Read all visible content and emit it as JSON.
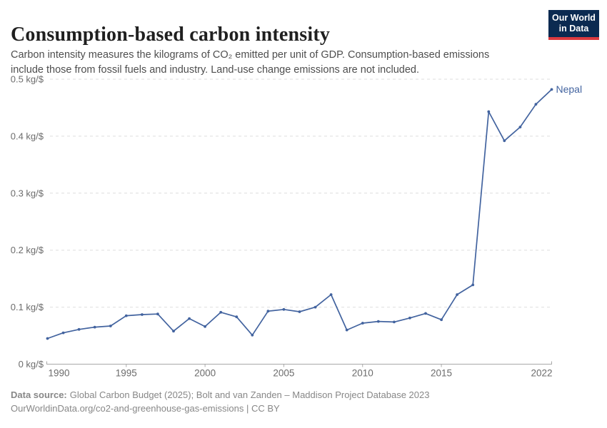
{
  "header": {
    "title": "Consumption-based carbon intensity",
    "subtitle": "Carbon intensity measures the kilograms of CO₂ emitted per unit of GDP. Consumption-based emissions include those from fossil fuels and industry. Land-use change emissions are not included."
  },
  "logo": {
    "line1": "Our World",
    "line2": "in Data",
    "bg_color": "#0b2a51",
    "bar_color": "#dc3a3f"
  },
  "chart_data": {
    "type": "line",
    "title": "Consumption-based carbon intensity",
    "entity_label": "Nepal",
    "unit": "kg/$",
    "x": [
      1990,
      1991,
      1992,
      1993,
      1994,
      1995,
      1996,
      1997,
      1998,
      1999,
      2000,
      2001,
      2002,
      2003,
      2004,
      2005,
      2006,
      2007,
      2008,
      2009,
      2010,
      2011,
      2012,
      2013,
      2014,
      2015,
      2016,
      2017,
      2018,
      2019,
      2020,
      2021,
      2022
    ],
    "series": [
      {
        "name": "Nepal",
        "color": "#42639f",
        "values": [
          0.045,
          0.055,
          0.061,
          0.065,
          0.067,
          0.085,
          0.087,
          0.088,
          0.058,
          0.08,
          0.066,
          0.091,
          0.083,
          0.051,
          0.093,
          0.096,
          0.092,
          0.1,
          0.122,
          0.06,
          0.072,
          0.075,
          0.074,
          0.081,
          0.089,
          0.078,
          0.122,
          0.139,
          0.443,
          0.392,
          0.416,
          0.456,
          0.482
        ]
      }
    ],
    "ylim": [
      0,
      0.5
    ],
    "yticks": [
      0,
      0.1,
      0.2,
      0.3,
      0.4,
      0.5
    ],
    "ytick_labels": [
      "0 kg/$",
      "0.1 kg/$",
      "0.2 kg/$",
      "0.3 kg/$",
      "0.4 kg/$",
      "0.5 kg/$"
    ],
    "xticks": [
      1990,
      1995,
      2000,
      2005,
      2010,
      2015,
      2022
    ],
    "grid": "horizontal-dashed",
    "legend_position": "end-of-line-label"
  },
  "footer": {
    "source_label": "Data source:",
    "source_text": "Global Carbon Budget (2025); Bolt and van Zanden – Maddison Project Database 2023",
    "url_text": "OurWorldinData.org/co2-and-greenhouse-gas-emissions | CC BY"
  },
  "colors": {
    "line": "#42639f",
    "grid": "#dedede",
    "axis": "#a8a8a8",
    "tick_label": "#6c6c6c",
    "subtitle": "#4e4e4e",
    "footer": "#878787"
  }
}
